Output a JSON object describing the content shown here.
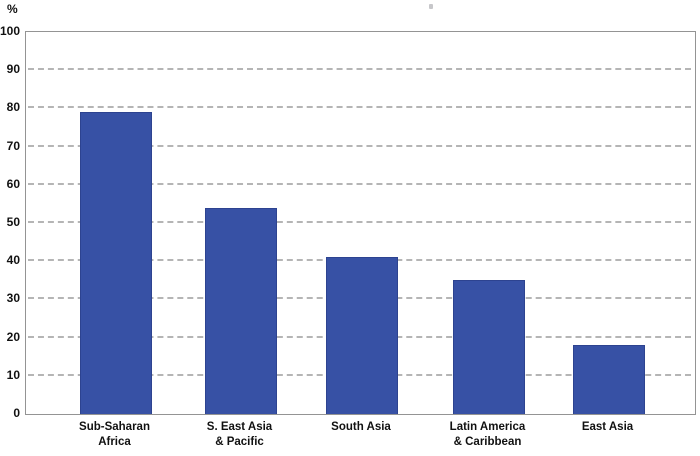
{
  "chart_data": {
    "type": "bar",
    "title": "",
    "ylabel": "%",
    "xlabel": "",
    "categories": [
      "Sub-Saharan\nAfrica",
      "S. East Asia\n& Pacific",
      "South Asia",
      "Latin America\n& Caribbean",
      "East Asia"
    ],
    "values": [
      79,
      54,
      41,
      35,
      18
    ],
    "ylim": [
      0,
      100
    ],
    "yticks": [
      0,
      10,
      20,
      30,
      40,
      50,
      60,
      70,
      80,
      90,
      100
    ],
    "grid": "horizontal-dashed",
    "legend_position": "none",
    "bar_color": "#3751a5",
    "gridline_color": "#b5b5b5",
    "frame_color": "#949494",
    "text_color": "#111111"
  }
}
